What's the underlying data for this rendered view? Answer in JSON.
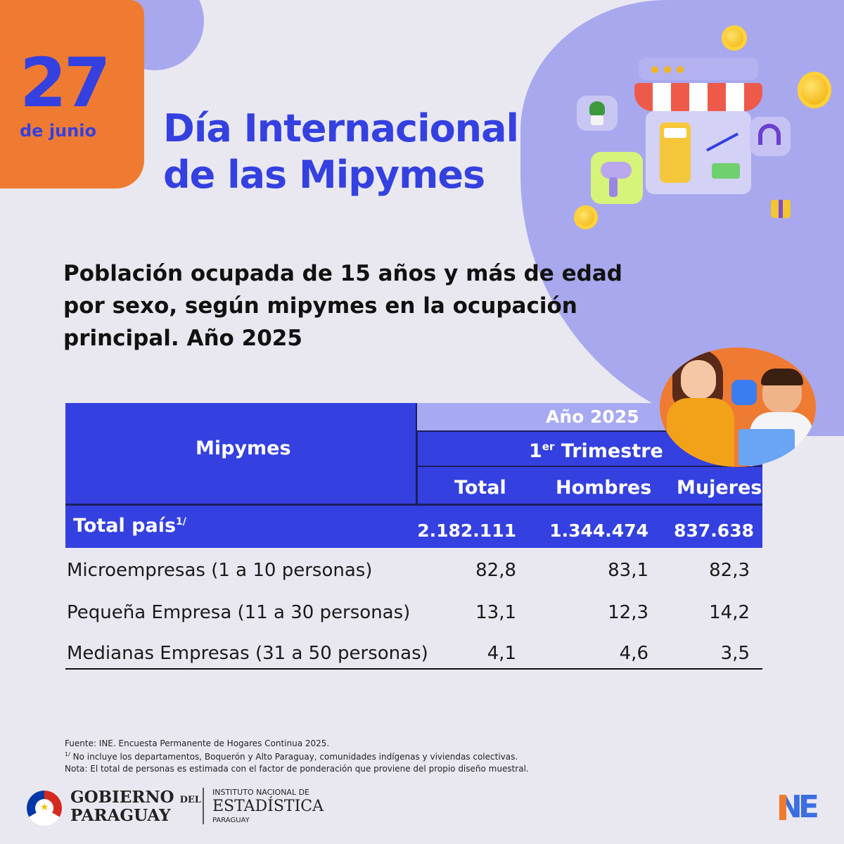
{
  "date": {
    "day": "27",
    "month": "de junio"
  },
  "headline": {
    "line1": "Día Internacional",
    "line2": "de las Mipymes"
  },
  "subtitle": {
    "line1": "Población ocupada de 15 años y más de edad",
    "line2": "por sexo, según mipymes en la ocupación",
    "line3": "principal. Año 2025"
  },
  "table": {
    "row_header": "Mipymes",
    "year": "Año 2025",
    "quarter_num": "1",
    "quarter_sup": "er",
    "quarter_label": "Trimestre",
    "columns": [
      "Total",
      "Hombres",
      "Mujeres"
    ],
    "total_label": "Total país",
    "total_sup": "1/",
    "total_values": [
      "2.182.111",
      "1.344.474",
      "837.638"
    ],
    "rows": [
      {
        "label": "Microempresas (1 a 10 personas)",
        "values": [
          "82,8",
          "83,1",
          "82,3"
        ]
      },
      {
        "label": "Pequeña Empresa (11 a 30 personas)",
        "values": [
          "13,1",
          "12,3",
          "14,2"
        ]
      },
      {
        "label": "Medianas Empresas (31 a 50 personas)",
        "values": [
          "4,1",
          "4,6",
          "3,5"
        ]
      }
    ]
  },
  "footnotes": {
    "source": "Fuente: INE. Encuesta Permanente de Hogares Continua 2025.",
    "note1_sup": "1/",
    "note1": "No incluye los departamentos, Boquerón y Alto Paraguay, comunidades indígenas y viviendas colectivas.",
    "note2": "Nota: El total de personas es estimada con el factor de ponderación que proviene del propio diseño muestral."
  },
  "logos": {
    "gov_line1": "GOBIERNO",
    "gov_del": "DEL",
    "gov_line2": "PARAGUAY",
    "ine_line1": "INSTITUTO NACIONAL DE",
    "ine_line2": "ESTADÍSTICA",
    "ine_line3": "PARAGUAY",
    "ine_mark": "NE"
  },
  "colors": {
    "brand_blue": "#3440e0",
    "orange": "#ef7b33",
    "lilac": "#a8a8ee"
  }
}
